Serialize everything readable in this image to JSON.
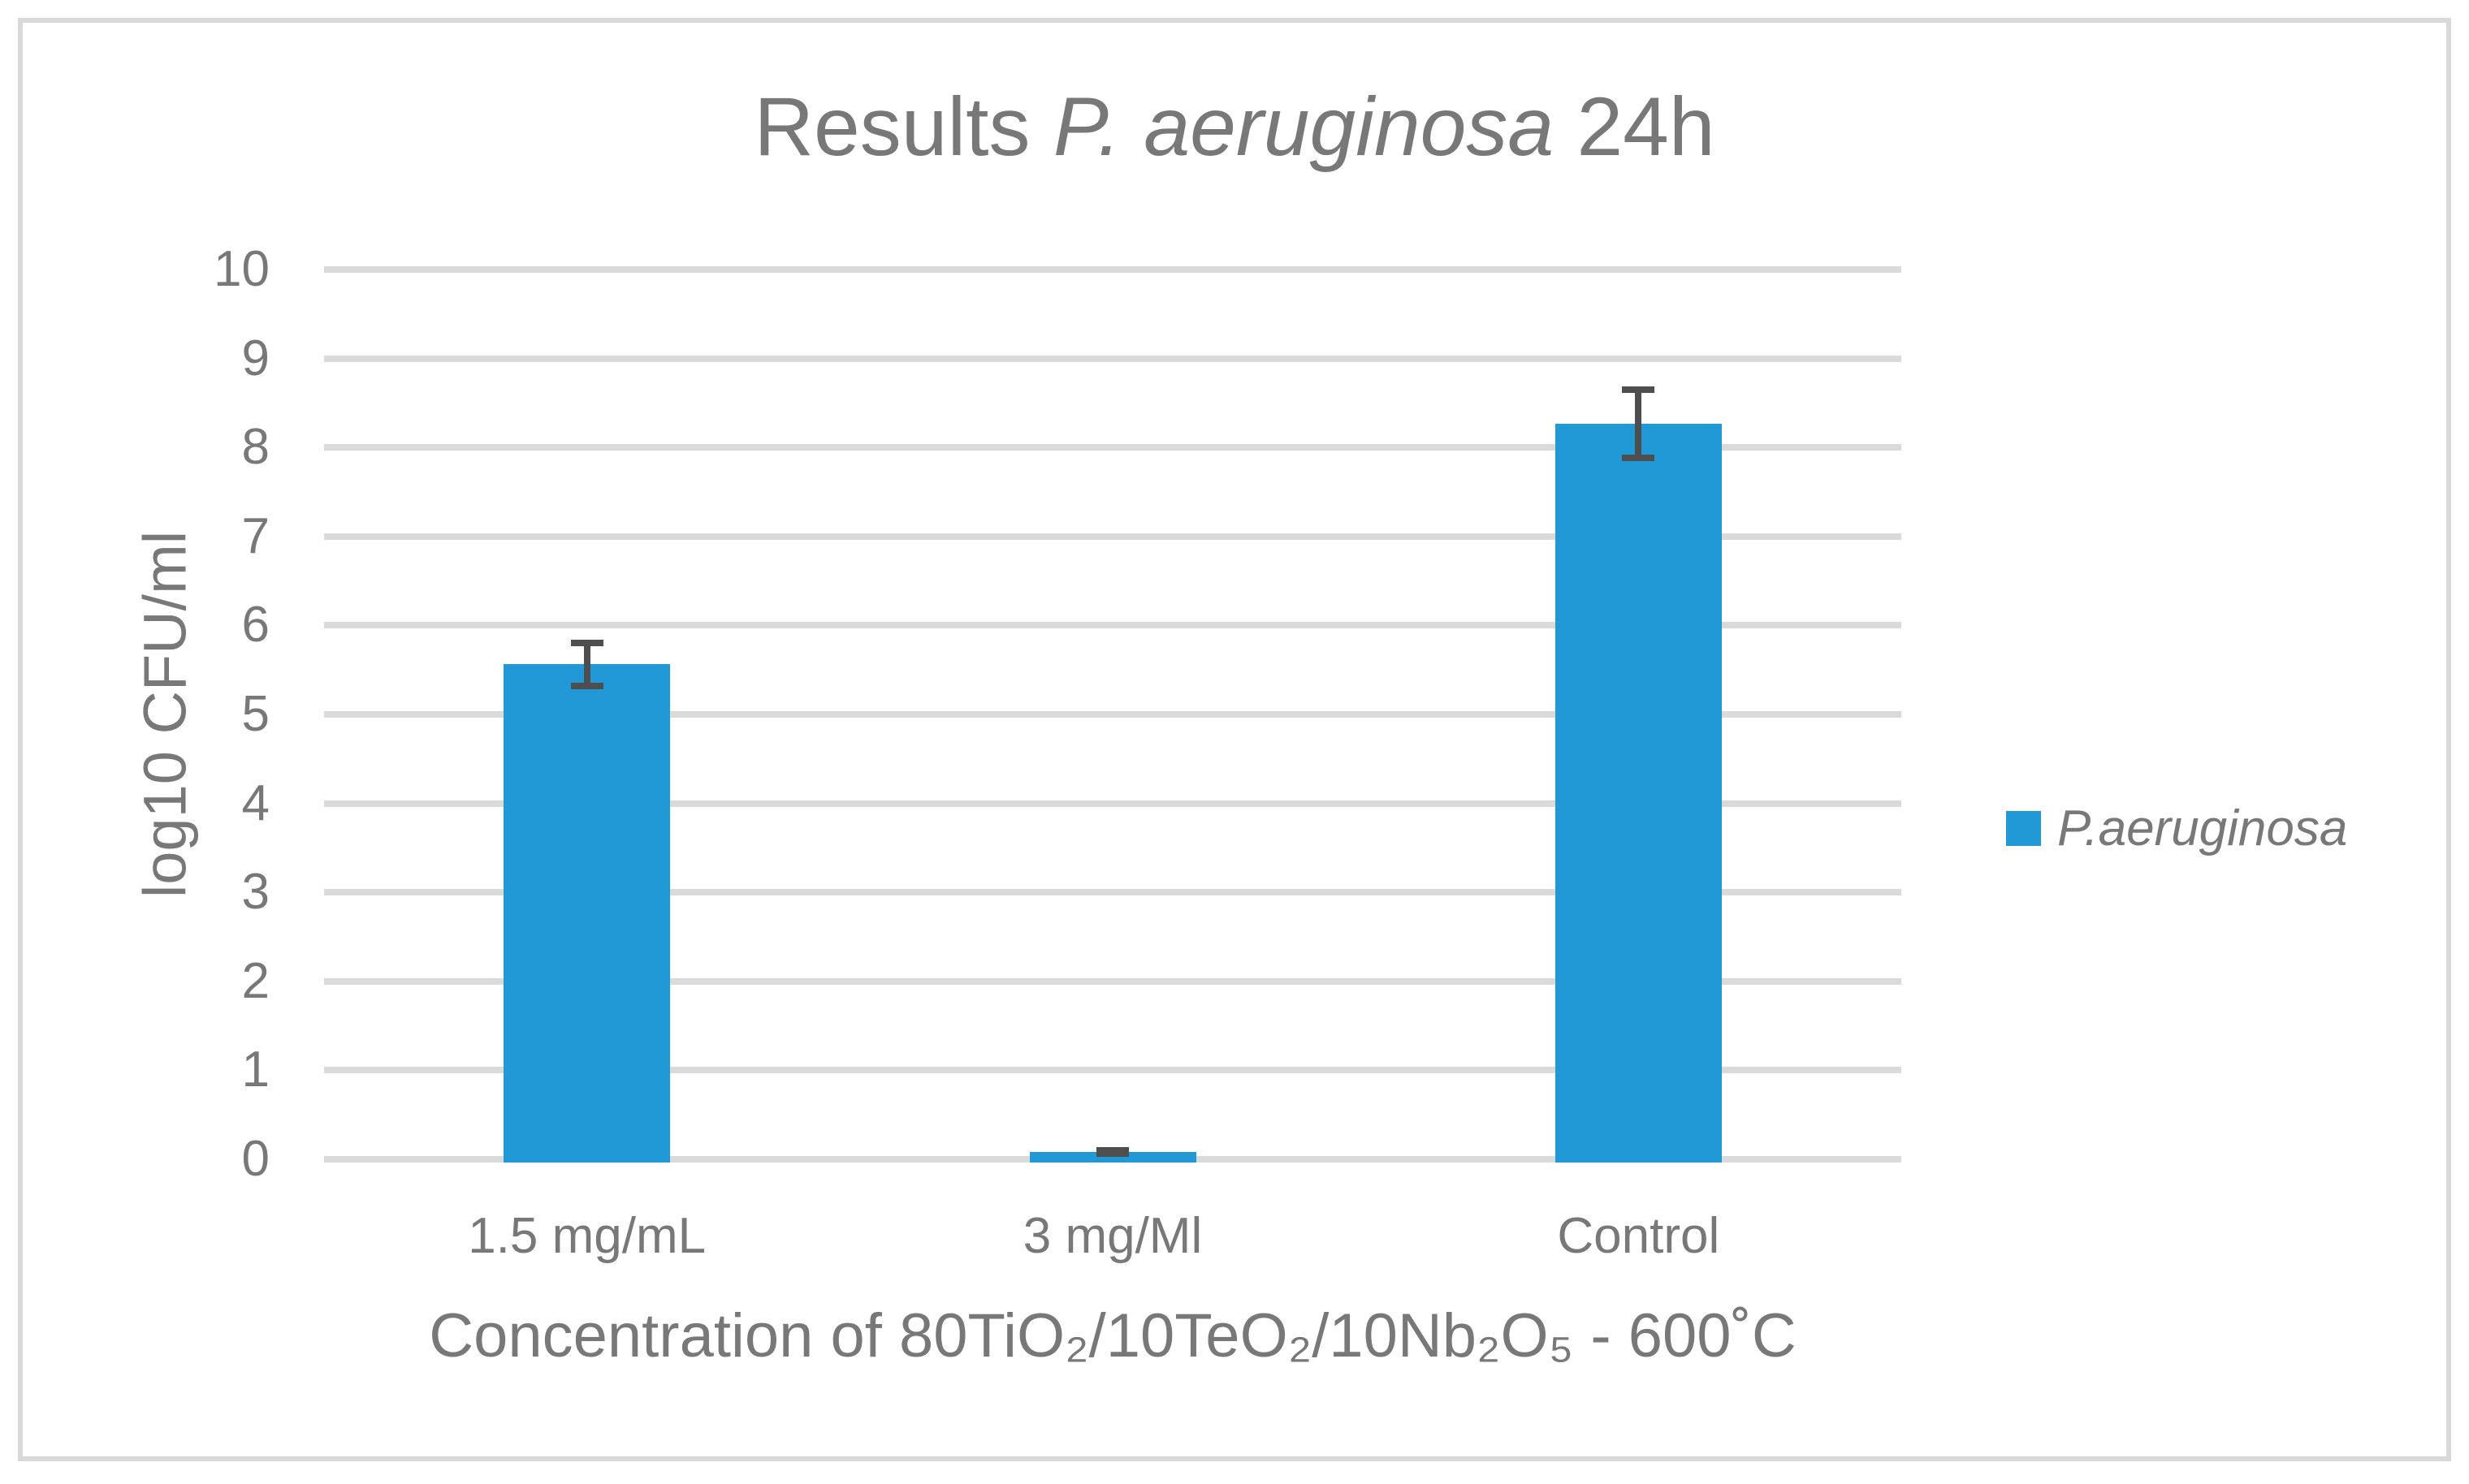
{
  "title": {
    "segments": [
      {
        "text": "Results ",
        "italic": false
      },
      {
        "text": "P. aeruginosa",
        "italic": true
      },
      {
        "text": " 24h",
        "italic": false
      }
    ]
  },
  "legend": {
    "label": "P.aeruginosa",
    "swatch_color": "#2199D6"
  },
  "axes": {
    "y": {
      "title": "log10 CFU/ml"
    },
    "x": {
      "title": "Concentration of 80TiO₂/10TeO₂/10Nb₂O₅ - 600˚C"
    }
  },
  "chart_data": {
    "type": "bar",
    "title": "Results P. aeruginosa 24h",
    "categories": [
      "1.5 mg/mL",
      "3 mg/Ml",
      "Control"
    ],
    "series": [
      {
        "name": "P.aeruginosa",
        "values": [
          5.6,
          0.12,
          8.3
        ],
        "error_bars": [
          0.28,
          0.02,
          0.42
        ],
        "color": "#2199D6"
      }
    ],
    "xlabel": "Concentration of 80TiO₂/10TeO₂/10Nb₂O₅ - 600˚C",
    "ylabel": "log10 CFU/ml",
    "ylim": [
      0,
      10
    ],
    "ytick_step": 1,
    "grid": true,
    "legend_position": "right",
    "colors": {
      "bar": "#2199D6",
      "gridline": "#DADADA",
      "error_bar": "#4E4E4E",
      "text": "#787878",
      "border": "#D9D9D9"
    }
  }
}
